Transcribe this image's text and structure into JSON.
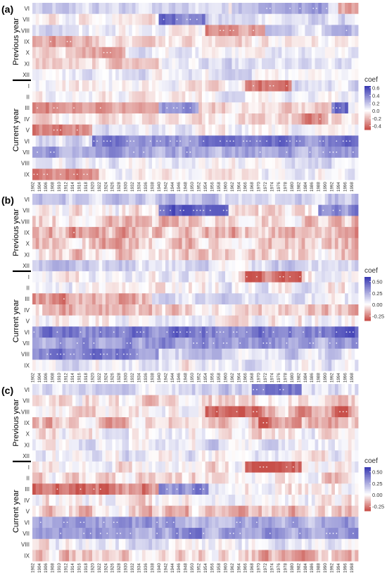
{
  "panels": [
    {
      "id": "a",
      "label": "(a)",
      "legend": {
        "title": "coef",
        "ticks": [
          "0.6",
          "0.4",
          "0.2",
          "0.0",
          "-0.2",
          "-0.4"
        ],
        "tick_values": [
          0.6,
          0.4,
          0.2,
          0.0,
          -0.2,
          -0.4
        ],
        "range": [
          -0.5,
          0.65
        ]
      },
      "groups": {
        "previous": "Previous year",
        "current": "Current year"
      },
      "rows_previous": [
        "VI",
        "VII",
        "VIII",
        "IX",
        "X",
        "XI",
        "XII"
      ],
      "rows_current": [
        "I",
        "II",
        "III",
        "IV",
        "V",
        "VI",
        "VII",
        "VIII",
        "IX"
      ]
    },
    {
      "id": "b",
      "label": "(b)",
      "legend": {
        "title": "coef",
        "ticks": [
          "0.50",
          "0.25",
          "0.00",
          "-0.25"
        ],
        "tick_values": [
          0.5,
          0.25,
          0.0,
          -0.25
        ],
        "range": [
          -0.35,
          0.6
        ]
      },
      "groups": {
        "previous": "Previous year",
        "current": "Current year"
      },
      "rows_previous": [
        "VI",
        "VII",
        "VIII",
        "IX",
        "X",
        "XI",
        "XII"
      ],
      "rows_current": [
        "I",
        "II",
        "III",
        "IV",
        "V",
        "VI",
        "VII",
        "VIII",
        "IX"
      ]
    },
    {
      "id": "c",
      "label": "(c)",
      "legend": {
        "title": "coef",
        "ticks": [
          "0.50",
          "0.25",
          "0.00",
          "-0.25"
        ],
        "tick_values": [
          0.5,
          0.25,
          0.0,
          -0.25
        ],
        "range": [
          -0.35,
          0.6
        ]
      },
      "groups": {
        "previous": "Previous year",
        "current": "Current year"
      },
      "rows_previous": [
        "VI",
        "VII",
        "VIII",
        "IX",
        "X",
        "XI",
        "XII"
      ],
      "rows_current": [
        "I",
        "II",
        "III",
        "IV",
        "V",
        "VI",
        "VII",
        "VIII",
        "IX"
      ]
    }
  ],
  "x_tick_labels": [
    "1902",
    "1904",
    "1906",
    "1908",
    "1910",
    "1912",
    "1914",
    "1916",
    "1918",
    "1920",
    "1922",
    "1924",
    "1926",
    "1928",
    "1930",
    "1932",
    "1934",
    "1936",
    "1938",
    "1940",
    "1942",
    "1944",
    "1946",
    "1948",
    "1950",
    "1952",
    "1954",
    "1956",
    "1958",
    "1960",
    "1962",
    "1964",
    "1966",
    "1968",
    "1970",
    "1972",
    "1974",
    "1976",
    "1978",
    "1980",
    "1982",
    "1984",
    "1986",
    "1988",
    "1990",
    "1992",
    "1994",
    "1996",
    "1998"
  ],
  "colors": {
    "high": "#3b3bb3",
    "mid": "#ffffff",
    "low": "#c8504a",
    "axis_text": "#333333",
    "panel_label": "#000000"
  },
  "chart_data": [
    {
      "type": "heatmap",
      "title": "(a)",
      "x": "1902–1999 (yearly columns)",
      "y": [
        "VI",
        "VII",
        "VIII",
        "IX",
        "X",
        "XI",
        "XII",
        "I",
        "II",
        "III",
        "IV",
        "V",
        "VI",
        "VII",
        "VIII",
        "IX"
      ],
      "colorbar": {
        "label": "coef",
        "range": [
          -0.5,
          0.65
        ]
      },
      "blocks": [
        {
          "row": "VI",
          "years": [
            1902,
            1960
          ],
          "value": 0.12
        },
        {
          "row": "VI",
          "years": [
            1962,
            1990
          ],
          "value": 0.3
        },
        {
          "row": "VI",
          "years": [
            1994,
            1999
          ],
          "value": -0.25
        },
        {
          "row": "VII",
          "years": [
            1902,
            1940
          ],
          "value": -0.05
        },
        {
          "row": "VII",
          "years": [
            1940,
            1954
          ],
          "value": 0.45
        },
        {
          "row": "VII",
          "years": [
            1954,
            1999
          ],
          "value": 0.1
        },
        {
          "row": "VIII",
          "years": [
            1902,
            1920
          ],
          "value": 0.05
        },
        {
          "row": "VIII",
          "years": [
            1954,
            1972
          ],
          "value": -0.3
        },
        {
          "row": "VIII",
          "years": [
            1972,
            1999
          ],
          "value": 0.15
        },
        {
          "row": "IX",
          "years": [
            1902,
            1920
          ],
          "value": -0.25
        },
        {
          "row": "IX",
          "years": [
            1920,
            1999
          ],
          "value": -0.05
        },
        {
          "row": "X",
          "years": [
            1902,
            1930
          ],
          "value": -0.2
        },
        {
          "row": "X",
          "years": [
            1930,
            1999
          ],
          "value": 0.05
        },
        {
          "row": "XI",
          "years": [
            1902,
            1940
          ],
          "value": -0.15
        },
        {
          "row": "XI",
          "years": [
            1940,
            1999
          ],
          "value": 0.05
        },
        {
          "row": "XII",
          "years": [
            1902,
            1999
          ],
          "value": 0.05
        },
        {
          "row": "I",
          "years": [
            1902,
            1960
          ],
          "value": 0.0
        },
        {
          "row": "I",
          "years": [
            1966,
            1980
          ],
          "value": -0.35
        },
        {
          "row": "I",
          "years": [
            1980,
            1999
          ],
          "value": 0.1
        },
        {
          "row": "II",
          "years": [
            1902,
            1999
          ],
          "value": 0.0
        },
        {
          "row": "III",
          "years": [
            1902,
            1940
          ],
          "value": -0.3
        },
        {
          "row": "III",
          "years": [
            1940,
            1952
          ],
          "value": 0.35
        },
        {
          "row": "III",
          "years": [
            1952,
            1990
          ],
          "value": -0.1
        },
        {
          "row": "III",
          "years": [
            1992,
            1996
          ],
          "value": 0.55
        },
        {
          "row": "IV",
          "years": [
            1902,
            1999
          ],
          "value": -0.1
        },
        {
          "row": "IV",
          "years": [
            1980,
            1990
          ],
          "value": -0.3
        },
        {
          "row": "V",
          "years": [
            1902,
            1920
          ],
          "value": -0.35
        },
        {
          "row": "V",
          "years": [
            1920,
            1999
          ],
          "value": 0.05
        },
        {
          "row": "VI",
          "years": [
            1902,
            1920
          ],
          "value": 0.1
        },
        {
          "row": "VI",
          "years": [
            1920,
            1999
          ],
          "value": 0.4
        },
        {
          "row": "VII",
          "years": [
            1902,
            1999
          ],
          "value": 0.3
        },
        {
          "row": "VIII",
          "years": [
            1902,
            1999
          ],
          "value": 0.05
        },
        {
          "row": "IX",
          "years": [
            1902,
            1922
          ],
          "value": -0.35
        },
        {
          "row": "IX",
          "years": [
            1922,
            1999
          ],
          "value": 0.0
        }
      ]
    },
    {
      "type": "heatmap",
      "title": "(b)",
      "x": "1902–1999 (yearly columns)",
      "y": [
        "VI",
        "VII",
        "VIII",
        "IX",
        "X",
        "XI",
        "XII",
        "I",
        "II",
        "III",
        "IV",
        "V",
        "VI",
        "VII",
        "VIII",
        "IX"
      ],
      "colorbar": {
        "label": "coef",
        "range": [
          -0.35,
          0.6
        ]
      },
      "blocks": [
        {
          "row": "VI",
          "years": [
            1902,
            1999
          ],
          "value": 0.15
        },
        {
          "row": "VII",
          "years": [
            1940,
            1960
          ],
          "value": 0.45
        },
        {
          "row": "VII",
          "years": [
            1988,
            1999
          ],
          "value": 0.35
        },
        {
          "row": "VIII",
          "years": [
            1902,
            1999
          ],
          "value": -0.1
        },
        {
          "row": "IX",
          "years": [
            1902,
            1999
          ],
          "value": -0.15
        },
        {
          "row": "X",
          "years": [
            1902,
            1999
          ],
          "value": -0.1
        },
        {
          "row": "XI",
          "years": [
            1902,
            1999
          ],
          "value": -0.1
        },
        {
          "row": "XII",
          "years": [
            1902,
            1999
          ],
          "value": 0.1
        },
        {
          "row": "I",
          "years": [
            1966,
            1982
          ],
          "value": -0.3
        },
        {
          "row": "II",
          "years": [
            1902,
            1999
          ],
          "value": 0.0
        },
        {
          "row": "III",
          "years": [
            1902,
            1938
          ],
          "value": -0.2
        },
        {
          "row": "III",
          "years": [
            1938,
            1999
          ],
          "value": 0.1
        },
        {
          "row": "IV",
          "years": [
            1902,
            1999
          ],
          "value": -0.1
        },
        {
          "row": "V",
          "years": [
            1902,
            1999
          ],
          "value": 0.0
        },
        {
          "row": "VI",
          "years": [
            1902,
            1999
          ],
          "value": 0.4
        },
        {
          "row": "VII",
          "years": [
            1902,
            1999
          ],
          "value": 0.3
        },
        {
          "row": "VIII",
          "years": [
            1902,
            1940
          ],
          "value": 0.4
        },
        {
          "row": "VIII",
          "years": [
            1940,
            1999
          ],
          "value": 0.1
        },
        {
          "row": "IX",
          "years": [
            1902,
            1999
          ],
          "value": 0.05
        }
      ]
    },
    {
      "type": "heatmap",
      "title": "(c)",
      "x": "1902–1999 (yearly columns)",
      "y": [
        "VI",
        "VII",
        "VIII",
        "IX",
        "X",
        "XI",
        "XII",
        "I",
        "II",
        "III",
        "IV",
        "V",
        "VI",
        "VII",
        "VIII",
        "IX"
      ],
      "colorbar": {
        "label": "coef",
        "range": [
          -0.35,
          0.6
        ]
      },
      "blocks": [
        {
          "row": "VI",
          "years": [
            1902,
            1999
          ],
          "value": 0.1
        },
        {
          "row": "VI",
          "years": [
            1968,
            1982
          ],
          "value": 0.4
        },
        {
          "row": "VII",
          "years": [
            1902,
            1999
          ],
          "value": -0.05
        },
        {
          "row": "VIII",
          "years": [
            1954,
            1999
          ],
          "value": -0.2
        },
        {
          "row": "IX",
          "years": [
            1902,
            1999
          ],
          "value": -0.1
        },
        {
          "row": "IX",
          "years": [
            1970,
            1982
          ],
          "value": -0.3
        },
        {
          "row": "X",
          "years": [
            1902,
            1999
          ],
          "value": 0.0
        },
        {
          "row": "XI",
          "years": [
            1902,
            1999
          ],
          "value": 0.05
        },
        {
          "row": "XII",
          "years": [
            1902,
            1999
          ],
          "value": 0.05
        },
        {
          "row": "I",
          "years": [
            1966,
            1982
          ],
          "value": -0.3
        },
        {
          "row": "II",
          "years": [
            1902,
            1999
          ],
          "value": -0.05
        },
        {
          "row": "III",
          "years": [
            1902,
            1940
          ],
          "value": -0.3
        },
        {
          "row": "III",
          "years": [
            1940,
            1954
          ],
          "value": 0.35
        },
        {
          "row": "IV",
          "years": [
            1902,
            1999
          ],
          "value": 0.0
        },
        {
          "row": "V",
          "years": [
            1902,
            1999
          ],
          "value": -0.1
        },
        {
          "row": "VI",
          "years": [
            1902,
            1999
          ],
          "value": 0.25
        },
        {
          "row": "VII",
          "years": [
            1902,
            1999
          ],
          "value": 0.3
        },
        {
          "row": "VIII",
          "years": [
            1902,
            1999
          ],
          "value": 0.05
        },
        {
          "row": "IX",
          "years": [
            1902,
            1999
          ],
          "value": -0.1
        }
      ]
    }
  ]
}
